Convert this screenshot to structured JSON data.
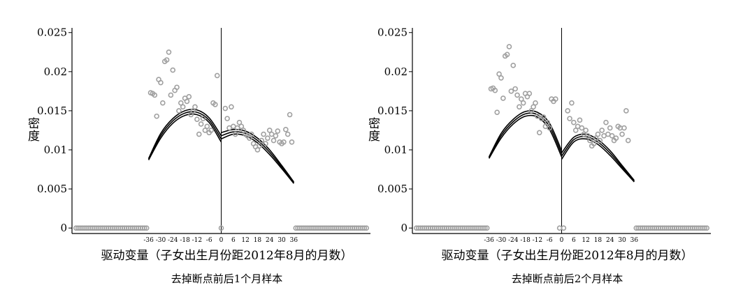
{
  "chart_data": [
    {
      "type": "scatter",
      "y_label": "密度",
      "x_label": "驱动变量（子女出生月份距2012年8月的月数）",
      "subtitle": "去掉断点前后1个月样本",
      "xlim": [
        -74,
        74
      ],
      "ylim": [
        -0.0007,
        0.0256
      ],
      "xticks": [
        -36,
        -30,
        -24,
        -18,
        -12,
        -6,
        0,
        6,
        12,
        18,
        24,
        30,
        36
      ],
      "yticks": [
        0,
        0.005,
        0.01,
        0.015,
        0.02,
        0.025
      ],
      "vline_x": 0,
      "series": [
        {
          "color": "#a0a0a0",
          "x": [
            -72,
            -71,
            -70,
            -69,
            -68,
            -67,
            -66,
            -65,
            -64,
            -63,
            -62,
            -61,
            -60,
            -59,
            -58,
            -57,
            -56,
            -55,
            -54,
            -53,
            -52,
            -51,
            -50,
            -49,
            -48,
            -47,
            -46,
            -45,
            -44,
            -43,
            -42,
            -41,
            -40,
            -39,
            -38,
            -37,
            0,
            37,
            38,
            39,
            40,
            41,
            42,
            43,
            44,
            45,
            46,
            47,
            48,
            49,
            50,
            51,
            52,
            53,
            54,
            55,
            56,
            57,
            58,
            59,
            60,
            61,
            62,
            63,
            64,
            65,
            66,
            67,
            68,
            69,
            70,
            71,
            72
          ],
          "values": [
            0,
            0,
            0,
            0,
            0,
            0,
            0,
            0,
            0,
            0,
            0,
            0,
            0,
            0,
            0,
            0,
            0,
            0,
            0,
            0,
            0,
            0,
            0,
            0,
            0,
            0,
            0,
            0,
            0,
            0,
            0,
            0,
            0,
            0,
            0,
            0,
            0,
            0,
            0,
            0,
            0,
            0,
            0,
            0,
            0,
            0,
            0,
            0,
            0,
            0,
            0,
            0,
            0,
            0,
            0,
            0,
            0,
            0,
            0,
            0,
            0,
            0,
            0,
            0,
            0,
            0,
            0,
            0,
            0,
            0,
            0,
            0,
            0
          ]
        },
        {
          "color": "#a0a0a0",
          "x": [
            -35,
            -34,
            -33,
            -32,
            -31,
            -30,
            -29,
            -28,
            -27,
            -26,
            -25,
            -24,
            -23,
            -22,
            -21,
            -20,
            -19,
            -18,
            -17,
            -16,
            -15,
            -14,
            -13,
            -12,
            -11,
            -10,
            -9,
            -8,
            -7,
            -6,
            -5,
            -4,
            -3,
            -2,
            2,
            3,
            4,
            5,
            6,
            7,
            8,
            9,
            10,
            11,
            12,
            13,
            14,
            15,
            16,
            17,
            18,
            19,
            20,
            21,
            22,
            23,
            24,
            25,
            26,
            27,
            28,
            29,
            30,
            31,
            32,
            33,
            34,
            35
          ],
          "values": [
            0.0173,
            0.0172,
            0.017,
            0.0143,
            0.019,
            0.0186,
            0.016,
            0.0213,
            0.0215,
            0.0225,
            0.017,
            0.0202,
            0.0176,
            0.018,
            0.015,
            0.016,
            0.0155,
            0.0166,
            0.0162,
            0.0168,
            0.0145,
            0.015,
            0.0155,
            0.0139,
            0.012,
            0.0133,
            0.014,
            0.0125,
            0.013,
            0.0122,
            0.0125,
            0.016,
            0.0158,
            0.0195,
            0.0153,
            0.014,
            0.0128,
            0.0155,
            0.013,
            0.012,
            0.0128,
            0.0135,
            0.013,
            0.0125,
            0.012,
            0.0118,
            0.0115,
            0.012,
            0.0108,
            0.0104,
            0.01,
            0.0105,
            0.0112,
            0.012,
            0.0108,
            0.0115,
            0.0125,
            0.012,
            0.0112,
            0.0118,
            0.0124,
            0.011,
            0.0108,
            0.011,
            0.0126,
            0.012,
            0.0145,
            0.011
          ]
        }
      ],
      "curves": [
        {
          "color": "#000000",
          "x": [
            -36,
            -30,
            -24,
            -18,
            -12,
            -6,
            0
          ],
          "values": [
            0.0088,
            0.0118,
            0.0137,
            0.0147,
            0.0148,
            0.0138,
            0.0114
          ]
        },
        {
          "color": "#000000",
          "x": [
            -36,
            -30,
            -24,
            -18,
            -12,
            -6,
            0
          ],
          "values": [
            0.0089,
            0.0121,
            0.014,
            0.015,
            0.0151,
            0.0141,
            0.0118
          ]
        },
        {
          "color": "#000000",
          "x": [
            -36,
            -30,
            -24,
            -18,
            -12,
            -6,
            0
          ],
          "values": [
            0.0087,
            0.0115,
            0.0134,
            0.0144,
            0.0145,
            0.0135,
            0.011
          ]
        },
        {
          "color": "#000000",
          "x": [
            0,
            6,
            12,
            18,
            24,
            30,
            36
          ],
          "values": [
            0.0118,
            0.0123,
            0.0121,
            0.0112,
            0.0097,
            0.0078,
            0.0058
          ]
        },
        {
          "color": "#000000",
          "x": [
            0,
            6,
            12,
            18,
            24,
            30,
            36
          ],
          "values": [
            0.0122,
            0.0126,
            0.0124,
            0.0115,
            0.01,
            0.008,
            0.0059
          ]
        },
        {
          "color": "#000000",
          "x": [
            0,
            6,
            12,
            18,
            24,
            30,
            36
          ],
          "values": [
            0.0114,
            0.012,
            0.0118,
            0.0109,
            0.0094,
            0.0076,
            0.0057
          ]
        }
      ]
    },
    {
      "type": "scatter",
      "y_label": "密度",
      "x_label": "驱动变量（子女出生月份距2012年8月的月数）",
      "subtitle": "去掉断点前后2个月样本",
      "xlim": [
        -74,
        74
      ],
      "ylim": [
        -0.0007,
        0.0256
      ],
      "xticks": [
        -36,
        -30,
        -24,
        -18,
        -12,
        -6,
        0,
        6,
        12,
        18,
        24,
        30,
        36
      ],
      "yticks": [
        0,
        0.005,
        0.01,
        0.015,
        0.02,
        0.025
      ],
      "vline_x": 0,
      "series": [
        {
          "color": "#a0a0a0",
          "x": [
            -72,
            -71,
            -70,
            -69,
            -68,
            -67,
            -66,
            -65,
            -64,
            -63,
            -62,
            -61,
            -60,
            -59,
            -58,
            -57,
            -56,
            -55,
            -54,
            -53,
            -52,
            -51,
            -50,
            -49,
            -48,
            -47,
            -46,
            -45,
            -44,
            -43,
            -42,
            -41,
            -40,
            -39,
            -38,
            -37,
            -1,
            1,
            37,
            38,
            39,
            40,
            41,
            42,
            43,
            44,
            45,
            46,
            47,
            48,
            49,
            50,
            51,
            52,
            53,
            54,
            55,
            56,
            57,
            58,
            59,
            60,
            61,
            62,
            63,
            64,
            65,
            66,
            67,
            68,
            69,
            70,
            71,
            72
          ],
          "values": [
            0,
            0,
            0,
            0,
            0,
            0,
            0,
            0,
            0,
            0,
            0,
            0,
            0,
            0,
            0,
            0,
            0,
            0,
            0,
            0,
            0,
            0,
            0,
            0,
            0,
            0,
            0,
            0,
            0,
            0,
            0,
            0,
            0,
            0,
            0,
            0,
            0,
            0,
            0,
            0,
            0,
            0,
            0,
            0,
            0,
            0,
            0,
            0,
            0,
            0,
            0,
            0,
            0,
            0,
            0,
            0,
            0,
            0,
            0,
            0,
            0,
            0,
            0,
            0,
            0,
            0,
            0,
            0,
            0,
            0,
            0,
            0,
            0,
            0
          ]
        },
        {
          "color": "#a0a0a0",
          "x": [
            -35,
            -34,
            -33,
            -32,
            -31,
            -30,
            -29,
            -28,
            -27,
            -26,
            -25,
            -24,
            -23,
            -22,
            -21,
            -20,
            -19,
            -18,
            -17,
            -16,
            -15,
            -14,
            -13,
            -12,
            -11,
            -10,
            -9,
            -8,
            -7,
            -6,
            -5,
            -4,
            -3,
            3,
            4,
            5,
            6,
            7,
            8,
            9,
            10,
            11,
            12,
            13,
            14,
            15,
            16,
            17,
            18,
            19,
            20,
            21,
            22,
            23,
            24,
            25,
            26,
            27,
            28,
            29,
            30,
            31,
            32,
            33
          ],
          "values": [
            0.0178,
            0.0179,
            0.0176,
            0.0148,
            0.0197,
            0.0192,
            0.0166,
            0.022,
            0.0222,
            0.0232,
            0.0175,
            0.0208,
            0.0178,
            0.017,
            0.0155,
            0.0165,
            0.016,
            0.0172,
            0.0168,
            0.0172,
            0.015,
            0.0155,
            0.016,
            0.0143,
            0.0122,
            0.014,
            0.0142,
            0.013,
            0.0135,
            0.0128,
            0.0165,
            0.0162,
            0.0165,
            0.015,
            0.014,
            0.016,
            0.0135,
            0.0125,
            0.013,
            0.0138,
            0.0128,
            0.012,
            0.0125,
            0.0118,
            0.0112,
            0.0105,
            0.0108,
            0.0115,
            0.012,
            0.0112,
            0.0125,
            0.0118,
            0.0135,
            0.012,
            0.0128,
            0.0118,
            0.0112,
            0.0115,
            0.013,
            0.0128,
            0.012,
            0.0128,
            0.015,
            0.0112
          ]
        }
      ],
      "curves": [
        {
          "color": "#000000",
          "x": [
            -36,
            -30,
            -24,
            -18,
            -12,
            -6,
            0
          ],
          "values": [
            0.009,
            0.0118,
            0.0136,
            0.0146,
            0.0145,
            0.013,
            0.0095
          ]
        },
        {
          "color": "#000000",
          "x": [
            -36,
            -30,
            -24,
            -18,
            -12,
            -6,
            0
          ],
          "values": [
            0.0091,
            0.0121,
            0.0139,
            0.0149,
            0.0148,
            0.0134,
            0.0099
          ]
        },
        {
          "color": "#000000",
          "x": [
            -36,
            -30,
            -24,
            -18,
            -12,
            -6,
            0
          ],
          "values": [
            0.0089,
            0.0115,
            0.0133,
            0.0143,
            0.0142,
            0.0126,
            0.0091
          ]
        },
        {
          "color": "#000000",
          "x": [
            0,
            6,
            12,
            18,
            24,
            30,
            36
          ],
          "values": [
            0.0092,
            0.0113,
            0.0117,
            0.011,
            0.0096,
            0.0078,
            0.006
          ]
        },
        {
          "color": "#000000",
          "x": [
            0,
            6,
            12,
            18,
            24,
            30,
            36
          ],
          "values": [
            0.0096,
            0.0116,
            0.012,
            0.0113,
            0.0099,
            0.008,
            0.0061
          ]
        },
        {
          "color": "#000000",
          "x": [
            0,
            6,
            12,
            18,
            24,
            30,
            36
          ],
          "values": [
            0.0088,
            0.011,
            0.0114,
            0.0107,
            0.0093,
            0.0076,
            0.0059
          ]
        }
      ]
    }
  ]
}
